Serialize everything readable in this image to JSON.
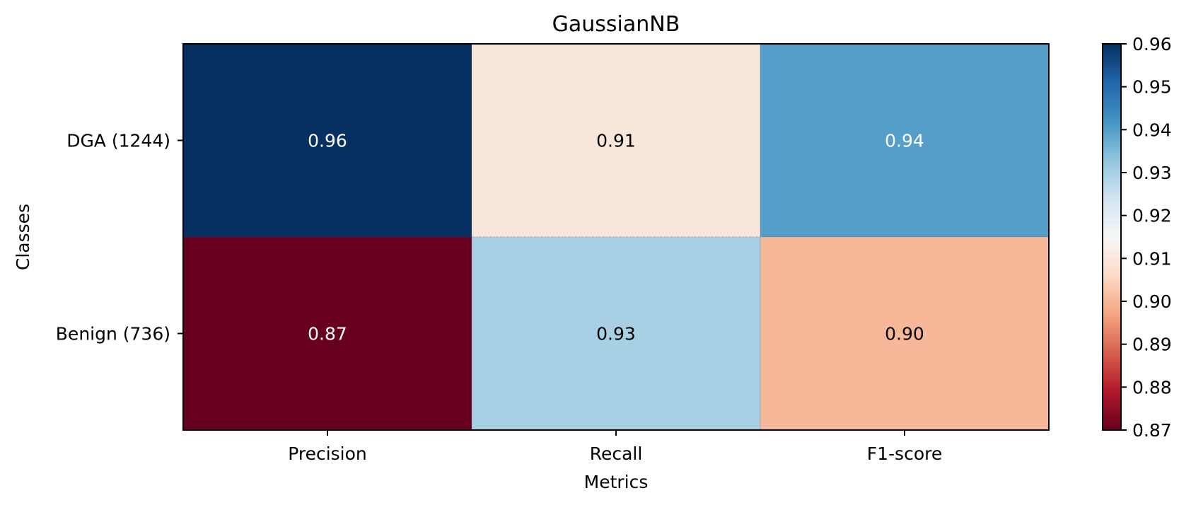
{
  "chart_data": {
    "type": "heatmap",
    "title": "GaussianNB",
    "xlabel": "Metrics",
    "ylabel": "Classes",
    "x_categories": [
      "Precision",
      "Recall",
      "F1-score"
    ],
    "y_categories": [
      "DGA (1244)",
      "Benign (736)"
    ],
    "values": [
      [
        0.96,
        0.91,
        0.94
      ],
      [
        0.87,
        0.93,
        0.9
      ]
    ],
    "cell_labels": [
      [
        "0.96",
        "0.91",
        "0.94"
      ],
      [
        "0.87",
        "0.93",
        "0.90"
      ]
    ],
    "colormap": "RdBu",
    "vmin": 0.87,
    "vmax": 0.96,
    "colorbar_ticks": [
      "0.87",
      "0.88",
      "0.89",
      "0.90",
      "0.91",
      "0.92",
      "0.93",
      "0.94",
      "0.95",
      "0.96"
    ],
    "grid": false
  }
}
